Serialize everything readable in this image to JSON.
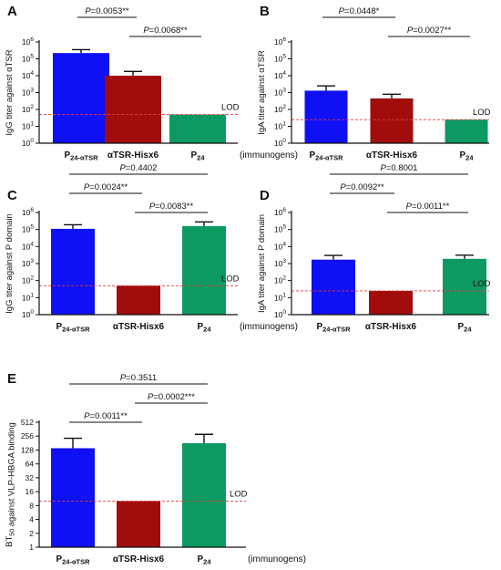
{
  "colors": {
    "bar_pattern": [
      "#1010f5",
      "#a10d0d",
      "#0d9a62"
    ],
    "lod_line": "#e23b3b",
    "axis": "#111111"
  },
  "chart_data": [
    {
      "type": "bar",
      "panel": "A",
      "ylabel": "IgG titer against αTSR",
      "y_scale": "log10",
      "ylim": [
        1,
        1000000
      ],
      "y_ticks": [
        1,
        10,
        100,
        1000,
        10000,
        100000,
        1000000
      ],
      "tick_labels": [
        "10^0",
        "10^1",
        "10^2",
        "10^3",
        "10^4",
        "10^5",
        "10^6"
      ],
      "categories": [
        "P24-αTSR",
        "αTSR-Hisx6",
        "P24"
      ],
      "values": [
        220000,
        10000,
        50
      ],
      "error_upper": [
        350000,
        18000,
        50
      ],
      "lod": 50,
      "lod_label": "LOD",
      "extra_label": "(immunogens)",
      "comparisons": [
        {
          "from": 0,
          "to": 1,
          "label": "P=0.0053**",
          "level": 0
        },
        {
          "from": 1,
          "to": 2,
          "label": "P=0.0068**",
          "level": 1
        }
      ]
    },
    {
      "type": "bar",
      "panel": "B",
      "ylabel": "IgA titer against αTSR",
      "y_scale": "log10",
      "ylim": [
        1,
        1000000
      ],
      "y_ticks": [
        1,
        10,
        100,
        1000,
        10000,
        100000,
        1000000
      ],
      "tick_labels": [
        "10^0",
        "10^1",
        "10^2",
        "10^3",
        "10^4",
        "10^5",
        "10^6"
      ],
      "categories": [
        "P24-αTSR",
        "αTSR-Hisx6",
        "P24"
      ],
      "values": [
        1300,
        450,
        25
      ],
      "error_upper": [
        2500,
        800,
        25
      ],
      "lod": 25,
      "lod_label": "LOD",
      "extra_label": "",
      "comparisons": [
        {
          "from": 0,
          "to": 1,
          "label": "P=0.0448*",
          "level": 0
        },
        {
          "from": 1,
          "to": 2,
          "label": "P=0.0027**",
          "level": 1
        }
      ]
    },
    {
      "type": "bar",
      "panel": "C",
      "ylabel": "IgG titer against P domain",
      "y_scale": "log10",
      "ylim": [
        1,
        1000000
      ],
      "y_ticks": [
        1,
        10,
        100,
        1000,
        10000,
        100000,
        1000000
      ],
      "tick_labels": [
        "10^0",
        "10^1",
        "10^2",
        "10^3",
        "10^4",
        "10^5",
        "10^6"
      ],
      "categories": [
        "P24-αTSR",
        "αTSR-Hisx6",
        "P24"
      ],
      "values": [
        110000,
        50,
        160000
      ],
      "error_upper": [
        190000,
        50,
        280000
      ],
      "lod": 50,
      "lod_label": "LOD",
      "extra_label": "(immunogens)",
      "comparisons": [
        {
          "from": 0,
          "to": 2,
          "label": "P=0.4402",
          "level": 0
        },
        {
          "from": 0,
          "to": 1,
          "label": "P=0.0024**",
          "level": 1
        },
        {
          "from": 1,
          "to": 2,
          "label": "P=0.0083**",
          "level": 2
        }
      ]
    },
    {
      "type": "bar",
      "panel": "D",
      "ylabel": "IgA titer against P domain",
      "y_scale": "log10",
      "ylim": [
        1,
        1000000
      ],
      "y_ticks": [
        1,
        10,
        100,
        1000,
        10000,
        100000,
        1000000
      ],
      "tick_labels": [
        "10^0",
        "10^1",
        "10^2",
        "10^3",
        "10^4",
        "10^5",
        "10^6"
      ],
      "categories": [
        "P24-αTSR",
        "αTSR-Hisx6",
        "P24"
      ],
      "values": [
        1700,
        25,
        1900
      ],
      "error_upper": [
        3000,
        25,
        3100
      ],
      "lod": 25,
      "lod_label": "LOD",
      "extra_label": "",
      "comparisons": [
        {
          "from": 0,
          "to": 2,
          "label": "P=0.8001",
          "level": 0
        },
        {
          "from": 0,
          "to": 1,
          "label": "P=0.0092**",
          "level": 1
        },
        {
          "from": 1,
          "to": 2,
          "label": "P=0.0011**",
          "level": 2
        }
      ]
    },
    {
      "type": "bar",
      "panel": "E",
      "ylabel": "BT50 against VLP-HBGA binding",
      "y_scale": "log2",
      "ylim": [
        1,
        512
      ],
      "y_ticks": [
        1,
        2,
        4,
        8,
        16,
        32,
        64,
        128,
        256,
        512
      ],
      "tick_labels": [
        "1",
        "2",
        "4",
        "8",
        "16",
        "32",
        "64",
        "128",
        "256",
        "512"
      ],
      "categories": [
        "P24-αTSR",
        "αTSR-Hisx6",
        "P24"
      ],
      "values": [
        140,
        10,
        180
      ],
      "error_upper": [
        230,
        10,
        280
      ],
      "lod": 10,
      "lod_label": "LOD",
      "extra_label": "(immunogens)",
      "comparisons": [
        {
          "from": 0,
          "to": 2,
          "label": "P=0.3511",
          "level": 0
        },
        {
          "from": 1,
          "to": 2,
          "label": "P=0.0002***",
          "level": 1
        },
        {
          "from": 0,
          "to": 1,
          "label": "P=0.0011**",
          "level": 2
        }
      ]
    }
  ]
}
